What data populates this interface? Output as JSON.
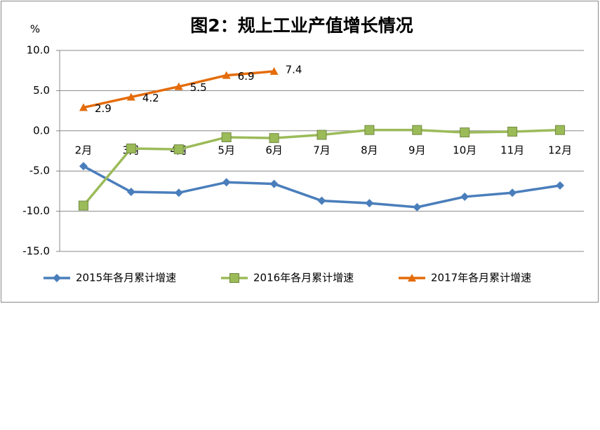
{
  "chart_data": {
    "type": "line",
    "title": "图2：规上工业产值增长情况",
    "y_label": "%",
    "categories": [
      "2月",
      "3月",
      "4月",
      "5月",
      "6月",
      "7月",
      "8月",
      "9月",
      "10月",
      "11月",
      "12月"
    ],
    "series": [
      {
        "name": "2015年各月累计增速",
        "color": "#4a7ebb",
        "marker": "diamond",
        "values": [
          -4.4,
          -7.6,
          -7.7,
          -6.4,
          -6.6,
          -8.7,
          -9.0,
          -9.5,
          -8.2,
          -7.7,
          -6.8
        ]
      },
      {
        "name": "2016年各月累计增速",
        "color": "#9bbb59",
        "marker": "square",
        "values": [
          -9.3,
          -2.2,
          -2.3,
          -0.8,
          -0.9,
          -0.5,
          0.1,
          0.1,
          -0.2,
          -0.1,
          0.1
        ]
      },
      {
        "name": "2017年各月累计增速",
        "color": "#e46c0a",
        "marker": "triangle",
        "show_labels": true,
        "values": [
          2.9,
          4.2,
          5.5,
          6.9,
          7.4,
          null,
          null,
          null,
          null,
          null,
          null
        ]
      }
    ],
    "ylim": [
      -15,
      10
    ],
    "yticks": [
      {
        "value": -15,
        "label": "-15.0"
      },
      {
        "value": -10,
        "label": "-10.0"
      },
      {
        "value": -5,
        "label": "-5.0"
      },
      {
        "value": 0,
        "label": "0.0"
      },
      {
        "value": 5,
        "label": "5.0"
      },
      {
        "value": 10,
        "label": "10.0"
      }
    ],
    "grid": true,
    "legend": "bottom"
  }
}
